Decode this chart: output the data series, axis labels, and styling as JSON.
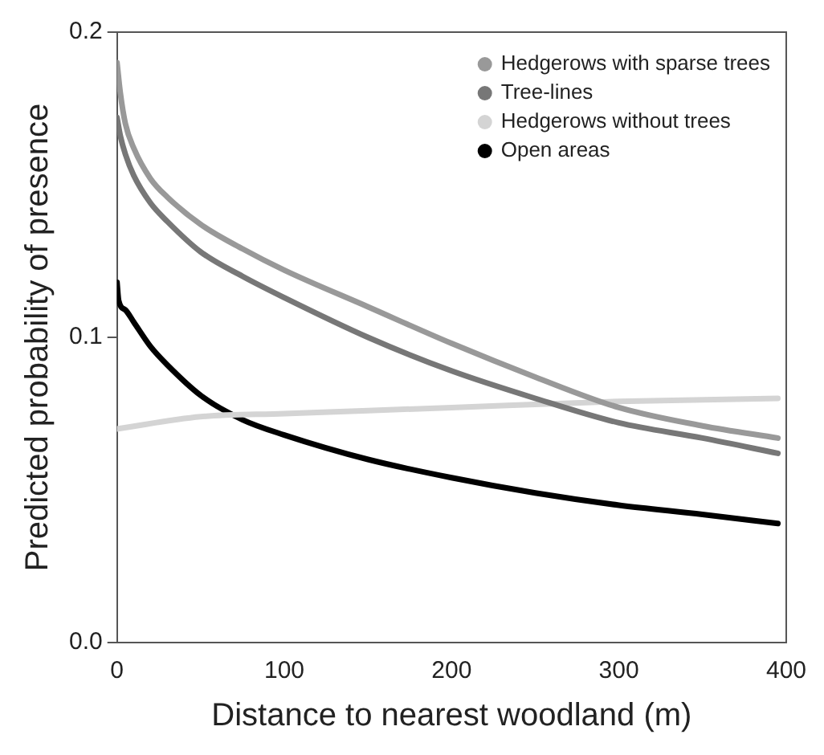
{
  "chart_data": {
    "type": "line",
    "xlabel": "Distance to nearest woodland (m)",
    "ylabel": "Predicted probability of presence",
    "xlim": [
      0,
      400
    ],
    "xticks": [
      0,
      100,
      200,
      300,
      400
    ],
    "ylim": [
      0,
      0.2
    ],
    "yticks": [
      {
        "value": 0,
        "label": "0.0"
      },
      {
        "value": 0.1,
        "label": "0.1"
      },
      {
        "value": 0.2,
        "label": "0.2"
      }
    ],
    "grid": false,
    "legend": "top right",
    "marker": "none",
    "line_style": "solid",
    "series": [
      {
        "name": "Hedgerows with sparse trees",
        "color": "#999999",
        "x": [
          0,
          2,
          5,
          10,
          20,
          30,
          50,
          75,
          100,
          150,
          200,
          250,
          300,
          350,
          395
        ],
        "values": [
          0.19,
          0.18,
          0.17,
          0.162,
          0.152,
          0.146,
          0.137,
          0.129,
          0.122,
          0.11,
          0.098,
          0.087,
          0.077,
          0.071,
          0.067
        ]
      },
      {
        "name": "Tree-lines",
        "color": "#777777",
        "x": [
          0,
          2,
          5,
          10,
          20,
          30,
          50,
          75,
          100,
          150,
          200,
          250,
          300,
          350,
          395
        ],
        "values": [
          0.172,
          0.166,
          0.16,
          0.153,
          0.144,
          0.138,
          0.128,
          0.12,
          0.113,
          0.1,
          0.089,
          0.08,
          0.072,
          0.067,
          0.062
        ]
      },
      {
        "name": "Hedgerows without trees",
        "color": "#d4d4d4",
        "x": [
          0,
          50,
          100,
          200,
          300,
          395
        ],
        "values": [
          0.07,
          0.074,
          0.075,
          0.077,
          0.079,
          0.08
        ]
      },
      {
        "name": "Open areas",
        "color": "#000000",
        "x": [
          0,
          1,
          5,
          10,
          20,
          30,
          50,
          75,
          100,
          150,
          200,
          250,
          300,
          350,
          395
        ],
        "values": [
          0.118,
          0.112,
          0.109,
          0.105,
          0.097,
          0.091,
          0.081,
          0.073,
          0.068,
          0.06,
          0.054,
          0.049,
          0.045,
          0.042,
          0.039
        ]
      }
    ]
  }
}
